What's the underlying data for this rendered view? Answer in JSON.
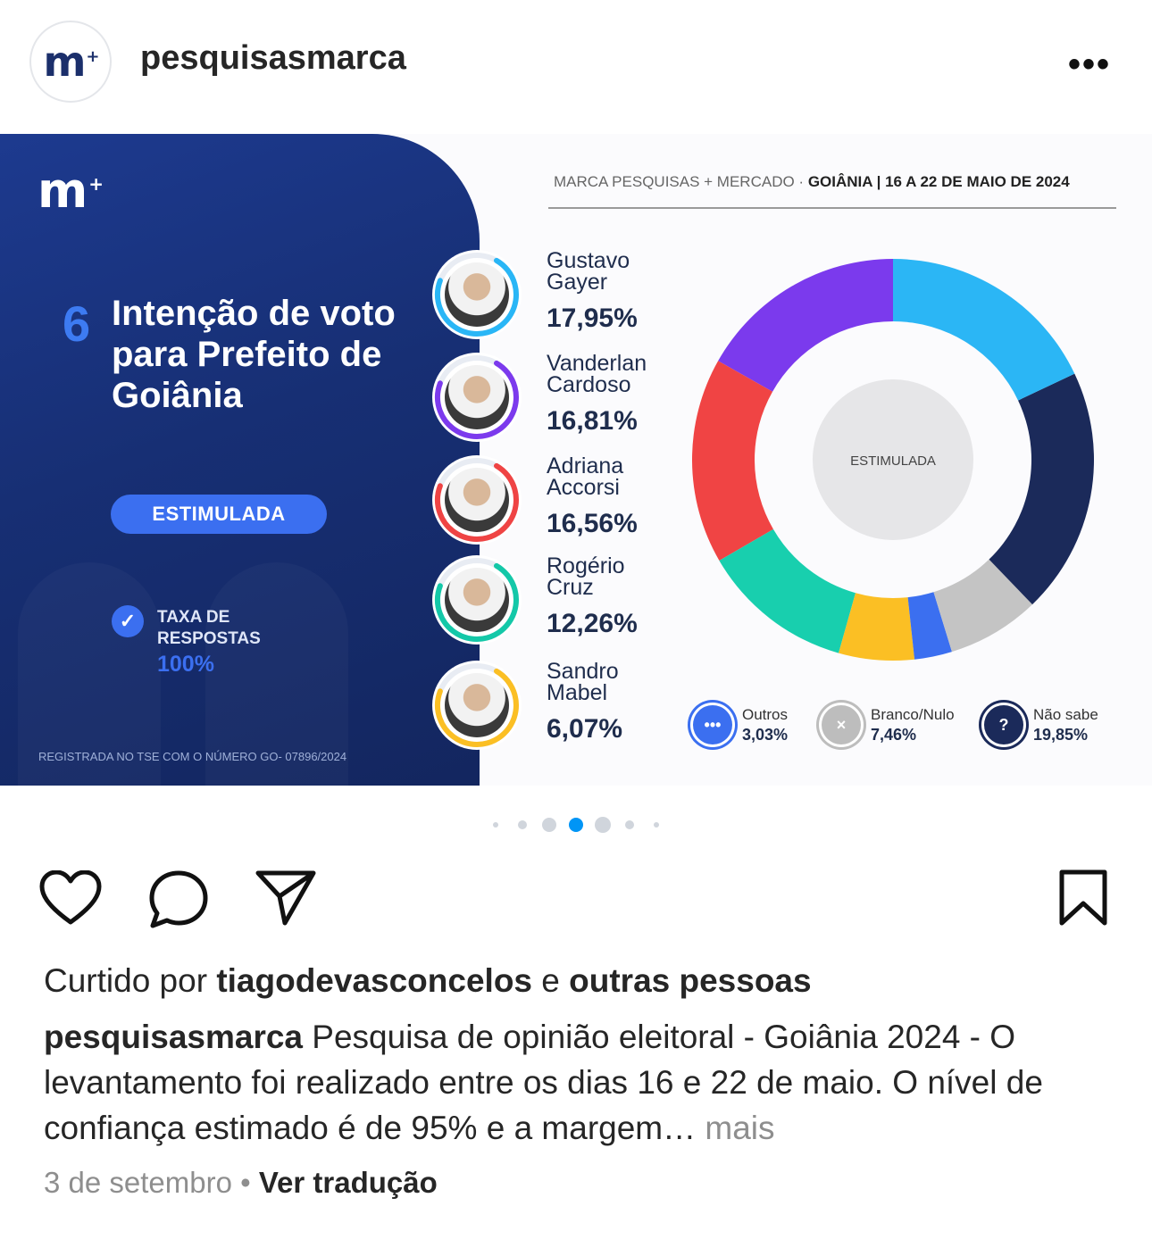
{
  "profile": {
    "username": "pesquisasmarca",
    "avatar_logo": "m",
    "avatar_plus": "+",
    "more_icon": "more-horizontal-icon",
    "more_label": "•••"
  },
  "post_image": {
    "logo": "m",
    "logo_plus": "+",
    "number": "6",
    "title": "Intenção de voto para Prefeito de Goiânia",
    "pill": "ESTIMULADA",
    "taxa_label_1": "TAXA DE",
    "taxa_label_2": "RESPOSTAS",
    "taxa_value": "100%",
    "registro": "REGISTRADA NO TSE COM O NÚMERO GO- 07896/2024",
    "source_left": "MARCA PESQUISAS + MERCADO",
    "source_sep": " · ",
    "source_right": "GOIÂNIA | 16 A 22 DE MAIO DE 2024",
    "center_label": "ESTIMULADA",
    "candidates": [
      {
        "first": "Gustavo",
        "last": "Gayer",
        "pct": "17,95%",
        "color": "#29b6f6"
      },
      {
        "first": "Vanderlan",
        "last": "Cardoso",
        "pct": "16,81%",
        "color": "#7c3aed"
      },
      {
        "first": "Adriana",
        "last": "Accorsi",
        "pct": "16,56%",
        "color": "#ef4444"
      },
      {
        "first": "Rogério",
        "last": "Cruz",
        "pct": "12,26%",
        "color": "#14c8a8"
      },
      {
        "first": "Sandro",
        "last": "Mabel",
        "pct": "6,07%",
        "color": "#fbbf24"
      }
    ],
    "legend": [
      {
        "label": "Outros",
        "pct": "3,03%",
        "icon": "dots-icon",
        "glyph": "•••",
        "color": "#3b6ff0"
      },
      {
        "label": "Branco/Nulo",
        "pct": "7,46%",
        "icon": "x-icon",
        "glyph": "×",
        "color": "#bdbdbd"
      },
      {
        "label": "Não sabe",
        "pct": "19,85%",
        "icon": "question-icon",
        "glyph": "?",
        "color": "#1b2a5a"
      }
    ],
    "chart_data": {
      "type": "pie",
      "variant": "donut",
      "categories": [
        "Gustavo Gayer",
        "Não sabe",
        "Branco/Nulo",
        "Outros",
        "Sandro Mabel",
        "Rogério Cruz",
        "Adriana Accorsi",
        "Vanderlan Cardoso"
      ],
      "values": [
        17.95,
        19.85,
        7.46,
        3.03,
        6.07,
        12.26,
        16.56,
        16.81
      ],
      "colors": [
        "#2bb6f5",
        "#1b2a5a",
        "#c4c4c4",
        "#3b6ff0",
        "#fbbf24",
        "#18cfae",
        "#f04444",
        "#7b3aed"
      ],
      "title": "",
      "center_label": "ESTIMULADA"
    }
  },
  "carousel": {
    "count": 7,
    "active": 4
  },
  "actions": {
    "like_icon": "heart-icon",
    "comment_icon": "comment-icon",
    "share_icon": "send-icon",
    "save_icon": "bookmark-icon"
  },
  "likes": {
    "prefix": "Curtido por ",
    "user": "tiagodevasconcelos",
    "middle": " e ",
    "others": "outras pessoas"
  },
  "caption": {
    "user": "pesquisasmarca",
    "text": " Pesquisa de opinião eleitoral - Goiânia 2024 - O levantamento foi realizado entre os dias 16 e 22 de maio. O nível de confiança estimado é de 95% e a margem… ",
    "more": "mais"
  },
  "meta": {
    "date": "3 de setembro",
    "separator": " • ",
    "translate": "Ver tradução"
  }
}
